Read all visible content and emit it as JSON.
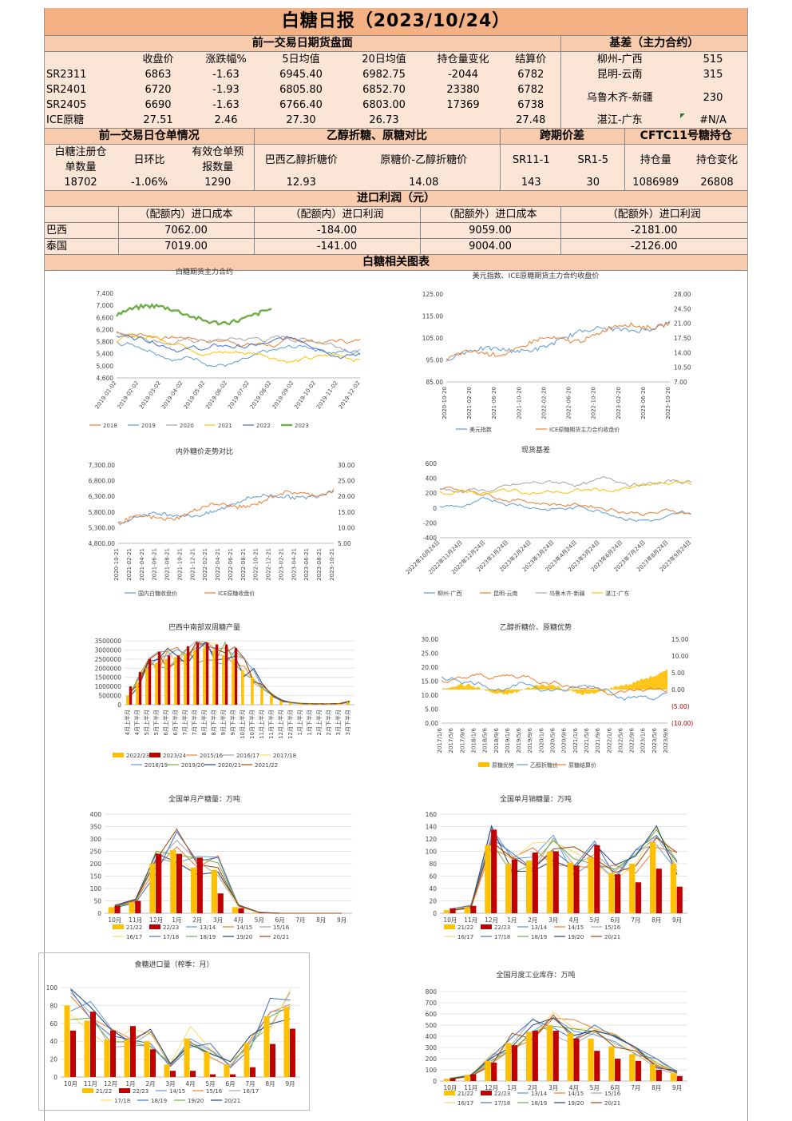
{
  "title": "白糖日报（2023/10/24）",
  "futures": {
    "header": "前一交易日期货盘面",
    "columns": [
      "收盘价",
      "涨跌幅%",
      "5日均值",
      "20日均值",
      "持仓量变化",
      "结算价"
    ],
    "rows": [
      {
        "name": "SR2311",
        "vals": [
          "6863",
          "-1.63",
          "6945.40",
          "6982.75",
          "-2044",
          "6782"
        ]
      },
      {
        "name": "SR2401",
        "vals": [
          "6720",
          "-1.93",
          "6805.80",
          "6852.70",
          "23380",
          "6782"
        ]
      },
      {
        "name": "SR2405",
        "vals": [
          "6690",
          "-1.63",
          "6766.40",
          "6803.00",
          "17369",
          "6738"
        ]
      },
      {
        "name": "ICE原糖",
        "vals": [
          "27.51",
          "2.46",
          "27.30",
          "26.73",
          "",
          "27.48"
        ]
      }
    ]
  },
  "basis": {
    "header": "基差（主力合约）",
    "rows": [
      {
        "name": "柳州-广西",
        "val": "515"
      },
      {
        "name": "昆明-云南",
        "val": "315"
      },
      {
        "name": "乌鲁木齐-新疆",
        "val": "230"
      },
      {
        "name": "湛江-广东",
        "val": "#N/A"
      }
    ]
  },
  "warehouse": {
    "header": "前一交易日仓单情况",
    "labels": [
      "白糖注册仓单数量",
      "日环比",
      "有效仓单预报数量"
    ],
    "label1a": "白糖注册仓",
    "label1b": "单数量",
    "label3a": "有效仓单预",
    "label3b": "报数量",
    "vals": [
      "18702",
      "-1.06%",
      "1290"
    ]
  },
  "ethanol": {
    "header": "乙醇折糖、原糖对比",
    "labels": [
      "巴西乙醇折糖价",
      "原糖价-乙醇折糖价"
    ],
    "vals": [
      "12.93",
      "14.08"
    ]
  },
  "spread": {
    "header": "跨期价差",
    "labels": [
      "SR11-1",
      "SR1-5"
    ],
    "vals": [
      "143",
      "30"
    ]
  },
  "cftc": {
    "header": "CFTC11号糖持仓",
    "labels": [
      "持仓量",
      "持仓变化"
    ],
    "vals": [
      "1086989",
      "26808"
    ]
  },
  "import": {
    "header": "进口利润（元）",
    "columns": [
      "（配额内）进口成本",
      "（配额内）进口利润",
      "（配额外）进口成本",
      "（配额外）进口利润"
    ],
    "rows": [
      {
        "name": "巴西",
        "vals": [
          "7062.00",
          "-184.00",
          "9059.00",
          "-2181.00"
        ]
      },
      {
        "name": "泰国",
        "vals": [
          "7019.00",
          "-141.00",
          "9004.00",
          "-2126.00"
        ]
      }
    ]
  },
  "charts_header": "白糖相关图表",
  "charts": [
    {
      "id": "c1",
      "type": "line",
      "title": "白糖期货主力合约",
      "yticks": [
        "7,400",
        "7,000",
        "6,600",
        "6,200",
        "5,800",
        "5,400",
        "5,000",
        "4,600"
      ],
      "xticks": [
        "2019-01-02",
        "2019-02-02",
        "2019-03-02",
        "2019-04-02",
        "2019-05-02",
        "2019-06-02",
        "2019-07-02",
        "2019-08-02",
        "2019-09-02",
        "2019-10-02",
        "2019-11-02",
        "2019-12-02"
      ],
      "legend": [
        "2018",
        "2019",
        "2020",
        "2021",
        "2022",
        "2023"
      ],
      "colors": [
        "#ed7d31",
        "#5b9bd5",
        "#a5a5a5",
        "#ffc000",
        "#4472c4",
        "#70ad47"
      ]
    },
    {
      "id": "c2",
      "type": "line",
      "title": "美元指数、ICE原糖期货主力合约收盘价",
      "yticks": [
        "125.00",
        "115.00",
        "105.00",
        "95.00",
        "85.00"
      ],
      "y2ticks": [
        "28.00",
        "24.50",
        "21.00",
        "17.50",
        "14.00",
        "10.50",
        "7.00"
      ],
      "xticks": [
        "2020-10-20",
        "2021-02-20",
        "2021-06-20",
        "2021-10-20",
        "2022-02-20",
        "2022-06-20",
        "2022-10-20",
        "2023-02-20",
        "2023-06-20",
        "2023-10-20"
      ],
      "legend": [
        "美元指数",
        "ICE原糖期货主力合约收盘价"
      ],
      "colors": [
        "#5b9bd5",
        "#ed7d31"
      ]
    },
    {
      "id": "c3",
      "type": "line",
      "title": "内外糖价走势对比",
      "yticks": [
        "7,300.00",
        "6,800.00",
        "6,300.00",
        "5,800.00",
        "5,300.00",
        "4,800.00"
      ],
      "y2ticks": [
        "30.00",
        "25.00",
        "20.00",
        "15.00",
        "10.00",
        "5.00"
      ],
      "xticks": [
        "2020-10-21",
        "2021-02-21",
        "2021-04-21",
        "2021-06-21",
        "2021-08-21",
        "2021-10-21",
        "2021-12-21",
        "2022-02-21",
        "2022-04-21",
        "2022-06-21",
        "2022-08-21",
        "2022-10-21",
        "2022-12-21",
        "2023-02-21",
        "2023-04-21",
        "2023-06-21",
        "2023-08-21",
        "2023-10-21"
      ],
      "legend": [
        "国内白糖收盘价",
        "ICE原糖收盘价"
      ],
      "colors": [
        "#5b9bd5",
        "#ed7d31"
      ]
    },
    {
      "id": "c4",
      "type": "line",
      "title": "现货基差",
      "yticks": [
        "600",
        "400",
        "200",
        "0",
        "-200",
        "-400"
      ],
      "xticks": [
        "2022年10月24日",
        "2022年11月24日",
        "2022年12月24日",
        "2023年1月24日",
        "2023年2月24日",
        "2023年3月24日",
        "2023年4月24日",
        "2023年5月24日",
        "2023年6月24日",
        "2023年7月24日",
        "2023年8月24日",
        "2023年9月24日"
      ],
      "legend": [
        "柳州-广西",
        "昆明-云南",
        "乌鲁木齐-新疆",
        "湛江-广东"
      ],
      "colors": [
        "#5b9bd5",
        "#ed7d31",
        "#a5a5a5",
        "#ffc000"
      ]
    },
    {
      "id": "c5",
      "type": "bar",
      "title": "巴西中南部双周糖产量",
      "yticks": [
        "3500000",
        "3000000",
        "2500000",
        "2000000",
        "1500000",
        "1000000",
        "500000",
        "0"
      ],
      "xticks": [
        "4月上半月",
        "4月下半月",
        "5月上半月",
        "5月下半月",
        "6月上半月",
        "6月下半月",
        "7月上半月",
        "7月下半月",
        "8月上半月",
        "8月下半月",
        "9月上半月",
        "9月下半月",
        "10月上半月",
        "10月下半月",
        "11月上半月",
        "11月下半月",
        "12月上半月",
        "12月下半月",
        "1月上半月",
        "1月下半月",
        "2月上半月",
        "2月下半月",
        "3月上半月",
        "3月下半月"
      ],
      "legend": [
        "2022/23",
        "2023/24",
        "2015/16",
        "2016/17",
        "2017/18",
        "2018/19",
        "2019/20",
        "2020/21",
        "2021/22"
      ],
      "colors": [
        "#ffc000",
        "#c00000",
        "#ed7d31",
        "#a5a5a5",
        "#ffd966",
        "#5b9bd5",
        "#70ad47",
        "#264478",
        "#9e480e"
      ]
    },
    {
      "id": "c6",
      "type": "line",
      "title": "乙醇折糖价、原糖优势",
      "yticks": [
        "30.00",
        "25.00",
        "20.00",
        "15.00",
        "10.00",
        "5.00",
        "0.00"
      ],
      "y2ticks": [
        "15.00",
        "10.00",
        "5.00",
        "0.00",
        "(5.00)",
        "(10.00)"
      ],
      "xticks": [
        "2017/1/6",
        "2017/5/6",
        "2017/9/6",
        "2018/1/6",
        "2018/5/6",
        "2018/9/6",
        "2019/1/6",
        "2019/5/6",
        "2019/9/6",
        "2020/1/6",
        "2020/5/6",
        "2020/9/6",
        "2021/1/6",
        "2021/5/6",
        "2021/9/6",
        "2022/1/6",
        "2022/5/6",
        "2022/9/6",
        "2023/1/6",
        "2023/5/6",
        "2023/9/6"
      ],
      "legend": [
        "原糖优势",
        "乙醇折糖价",
        "原糖结算价"
      ],
      "colors": [
        "#ffc000",
        "#5b9bd5",
        "#ed7d31"
      ]
    },
    {
      "id": "c7",
      "type": "bar",
      "title": "全国单月产糖量：万吨",
      "yticks": [
        "400",
        "350",
        "300",
        "250",
        "200",
        "150",
        "100",
        "50",
        "0"
      ],
      "xticks": [
        "10月",
        "11月",
        "12月",
        "1月",
        "2月",
        "3月",
        "4月",
        "5月",
        "6月",
        "7月",
        "8月",
        "9月"
      ],
      "legend": [
        "21/22",
        "22/23",
        "13/14",
        "14/15",
        "15/16",
        "16/17",
        "17/18",
        "18/19",
        "19/20",
        "20/21"
      ],
      "colors": [
        "#ffc000",
        "#c00000",
        "#5b9bd5",
        "#ed7d31",
        "#a5a5a5",
        "#ffd966",
        "#4472c4",
        "#70ad47",
        "#264478",
        "#9e480e"
      ]
    },
    {
      "id": "c8",
      "type": "bar",
      "title": "全国单月销糖量：万吨",
      "yticks": [
        "160",
        "140",
        "120",
        "100",
        "80",
        "60",
        "40",
        "20",
        "0"
      ],
      "xticks": [
        "10月",
        "11月",
        "12月",
        "1月",
        "2月",
        "3月",
        "4月",
        "5月",
        "6月",
        "7月",
        "8月",
        "9月"
      ],
      "legend": [
        "21/22",
        "22/23",
        "13/14",
        "14/15",
        "15/16",
        "16/17",
        "17/18",
        "18/19",
        "19/20",
        "20/21"
      ],
      "colors": [
        "#ffc000",
        "#c00000",
        "#5b9bd5",
        "#ed7d31",
        "#a5a5a5",
        "#ffd966",
        "#4472c4",
        "#70ad47",
        "#264478",
        "#9e480e"
      ]
    },
    {
      "id": "c9",
      "type": "bar",
      "title": "食糖进口量（榨季：月）",
      "yticks": [
        "100",
        "80",
        "60",
        "40",
        "20",
        "0"
      ],
      "xticks": [
        "10月",
        "11月",
        "12月",
        "1月",
        "2月",
        "3月",
        "4月",
        "5月",
        "6月",
        "7月",
        "8月",
        "9月"
      ],
      "legend": [
        "21/22",
        "22/23",
        "14/15",
        "15/16",
        "16/17",
        "17/18",
        "18/19",
        "19/20",
        "20/21"
      ],
      "colors": [
        "#ffc000",
        "#c00000",
        "#5b9bd5",
        "#ed7d31",
        "#a5a5a5",
        "#ffd966",
        "#4472c4",
        "#70ad47",
        "#264478"
      ]
    },
    {
      "id": "c10",
      "type": "bar",
      "title": "全国月度工业库存：万吨",
      "yticks": [
        "800",
        "700",
        "600",
        "500",
        "400",
        "300",
        "200",
        "100",
        "0"
      ],
      "xticks": [
        "10月",
        "11月",
        "12月",
        "1月",
        "2月",
        "3月",
        "4月",
        "5月",
        "6月",
        "7月",
        "8月",
        "9月"
      ],
      "legend": [
        "21/22",
        "22/23",
        "13/14",
        "14/15",
        "15/16",
        "16/17",
        "17/18",
        "18/19",
        "19/20",
        "20/21"
      ],
      "colors": [
        "#ffc000",
        "#c00000",
        "#5b9bd5",
        "#ed7d31",
        "#a5a5a5",
        "#ffd966",
        "#4472c4",
        "#70ad47",
        "#264478",
        "#9e480e"
      ]
    }
  ],
  "chart_data": [
    {
      "type": "bar",
      "title": "全国单月产糖量：万吨",
      "categories": [
        "10月",
        "11月",
        "12月",
        "1月",
        "2月",
        "3月",
        "4月",
        "5月",
        "6月",
        "7月",
        "8月",
        "9月"
      ],
      "series": [
        {
          "name": "21/22",
          "values": [
            25,
            45,
            200,
            255,
            185,
            175,
            25,
            3,
            0,
            0,
            0,
            0
          ]
        },
        {
          "name": "22/23",
          "values": [
            30,
            50,
            240,
            240,
            225,
            80,
            20,
            2,
            0,
            0,
            0,
            0
          ]
        }
      ],
      "ylim": [
        0,
        400
      ]
    },
    {
      "type": "bar",
      "title": "全国单月销糖量：万吨",
      "categories": [
        "10月",
        "11月",
        "12月",
        "1月",
        "2月",
        "3月",
        "4月",
        "5月",
        "6月",
        "7月",
        "8月",
        "9月"
      ],
      "series": [
        {
          "name": "21/22",
          "values": [
            5,
            10,
            110,
            80,
            85,
            100,
            82,
            90,
            65,
            80,
            115,
            80
          ]
        },
        {
          "name": "22/23",
          "values": [
            8,
            12,
            135,
            87,
            98,
            100,
            77,
            110,
            63,
            50,
            72,
            43
          ]
        }
      ],
      "ylim": [
        0,
        160
      ]
    },
    {
      "type": "bar",
      "title": "食糖进口量（榨季：月）",
      "categories": [
        "10月",
        "11月",
        "12月",
        "1月",
        "2月",
        "3月",
        "4月",
        "5月",
        "6月",
        "7月",
        "8月",
        "9月"
      ],
      "series": [
        {
          "name": "21/22",
          "values": [
            80,
            63,
            42,
            42,
            40,
            14,
            43,
            28,
            14,
            38,
            68,
            78
          ]
        },
        {
          "name": "22/23",
          "values": [
            52,
            73,
            52,
            57,
            31,
            7,
            7,
            3,
            3,
            11,
            37,
            54
          ]
        }
      ],
      "ylim": [
        0,
        100
      ]
    },
    {
      "type": "bar",
      "title": "全国月度工业库存：万吨",
      "categories": [
        "10月",
        "11月",
        "12月",
        "1月",
        "2月",
        "3月",
        "4月",
        "5月",
        "6月",
        "7月",
        "8月",
        "9月"
      ],
      "series": [
        {
          "name": "21/22",
          "values": [
            20,
            55,
            180,
            340,
            440,
            500,
            430,
            380,
            310,
            240,
            150,
            70
          ]
        },
        {
          "name": "22/23",
          "values": [
            25,
            60,
            165,
            320,
            450,
            450,
            380,
            270,
            200,
            180,
            100,
            45
          ]
        }
      ],
      "ylim": [
        0,
        800
      ]
    },
    {
      "type": "bar",
      "title": "巴西中南部双周糖产量",
      "categories": [
        "4月上半月",
        "4月下半月",
        "5月上半月",
        "5月下半月",
        "6月上半月",
        "6月下半月",
        "7月上半月",
        "7月下半月",
        "8月上半月",
        "8月下半月",
        "9月上半月",
        "9月下半月",
        "10月上半月",
        "10月下半月",
        "11月上半月",
        "11月下半月",
        "12月上半月",
        "12月下半月",
        "1月上半月",
        "1月下半月",
        "2月上半月",
        "2月下半月",
        "3月上半月",
        "3月下半月"
      ],
      "series": [
        {
          "name": "2022/23",
          "values": [
            500000,
            1200000,
            2000000,
            2300000,
            2500000,
            2600000,
            2800000,
            3000000,
            3100000,
            3000000,
            2700000,
            2500000,
            1900000,
            1500000,
            900000,
            500000,
            200000,
            100000,
            60000,
            50000,
            40000,
            40000,
            60000,
            150000
          ]
        },
        {
          "name": "2023/24",
          "values": [
            1000000,
            1800000,
            2500000,
            2900000,
            2700000,
            2700000,
            3200000,
            3400000,
            3400000,
            3300000,
            3300000,
            3100000,
            0,
            0,
            0,
            0,
            0,
            0,
            0,
            0,
            0,
            0,
            0,
            0
          ]
        }
      ],
      "ylim": [
        0,
        3500000
      ]
    }
  ]
}
